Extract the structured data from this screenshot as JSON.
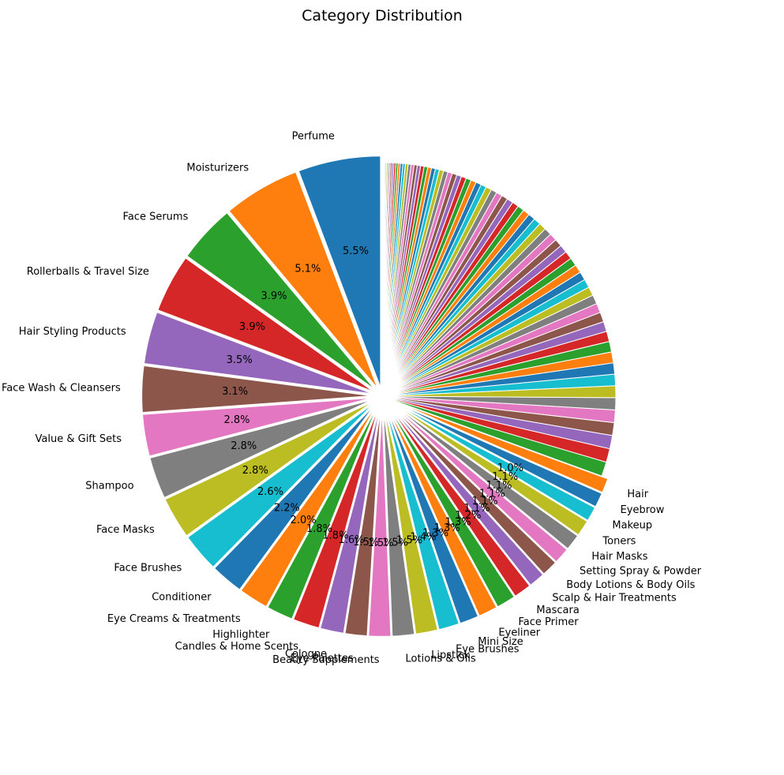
{
  "chart_data": {
    "type": "pie",
    "title": "Category Distribution",
    "start_angle_deg": 90,
    "direction": "counterclockwise",
    "labeled_slices": [
      {
        "label": "Perfume",
        "value": 5.5
      },
      {
        "label": "Moisturizers",
        "value": 5.1
      },
      {
        "label": "Face Serums",
        "value": 3.9
      },
      {
        "label": "Rollerballs & Travel Size",
        "value": 3.9
      },
      {
        "label": "Hair Styling Products",
        "value": 3.5
      },
      {
        "label": "Face Wash & Cleansers",
        "value": 3.1
      },
      {
        "label": "Value & Gift Sets",
        "value": 2.8
      },
      {
        "label": "Shampoo",
        "value": 2.8
      },
      {
        "label": "Face Masks",
        "value": 2.8
      },
      {
        "label": "Face Brushes",
        "value": 2.6
      },
      {
        "label": "Conditioner",
        "value": 2.2
      },
      {
        "label": "Eye Creams & Treatments",
        "value": 2.0
      },
      {
        "label": "Highlighter",
        "value": 1.8
      },
      {
        "label": "Candles & Home Scents",
        "value": 1.8
      },
      {
        "label": "Cologne",
        "value": 1.6
      },
      {
        "label": "Eye Palettes",
        "value": 1.5
      },
      {
        "label": "Beauty Supplements",
        "value": 1.5
      },
      {
        "label": "Lotions & Oils",
        "value": 1.5
      },
      {
        "label": "Lipstick",
        "value": 1.5
      },
      {
        "label": "Eye Brushes",
        "value": 1.4
      },
      {
        "label": "Mini Size",
        "value": 1.3
      },
      {
        "label": "Eyeliner",
        "value": 1.3
      },
      {
        "label": "Face Primer",
        "value": 1.3
      },
      {
        "label": "Mascara",
        "value": 1.2
      },
      {
        "label": "Scalp & Hair Treatments",
        "value": 1.1
      },
      {
        "label": "Body Lotions & Body Oils",
        "value": 1.1
      },
      {
        "label": "Setting Spray & Powder",
        "value": 1.1
      },
      {
        "label": "Hair Masks",
        "value": 1.1
      },
      {
        "label": "Toners",
        "value": 1.1
      },
      {
        "label": "Makeup",
        "value": 1.0
      },
      {
        "label": "Eyebrow",
        "value": 1.0
      },
      {
        "label": "Hair",
        "value": 1.0
      }
    ],
    "pct_labels": [
      "5.5%",
      "5.1%",
      "3.9%",
      "3.9%",
      "3.5%",
      "3.1%",
      "2.8%",
      "2.8%",
      "2.8%",
      "2.6%",
      "2.2%",
      "2.0%",
      "1.8%",
      "1.8%",
      "1.6%",
      "1.5%",
      "1.5%",
      "1.5%",
      "1.5%",
      "1.4%",
      "1.3%",
      "1.3%",
      "1.3%",
      "1.2%",
      "1.1%",
      "1.1%",
      "1.1%",
      "1.1%",
      "1.1%",
      "1.0%",
      "",
      ""
    ],
    "unlabeled_slice_values": [
      0.95,
      0.9,
      0.88,
      0.85,
      0.83,
      0.8,
      0.78,
      0.76,
      0.74,
      0.72,
      0.7,
      0.68,
      0.66,
      0.64,
      0.62,
      0.6,
      0.58,
      0.57,
      0.56,
      0.55,
      0.54,
      0.53,
      0.52,
      0.51,
      0.5,
      0.49,
      0.48,
      0.47,
      0.46,
      0.45,
      0.44,
      0.43,
      0.42,
      0.41,
      0.4,
      0.39,
      0.38,
      0.37,
      0.36,
      0.35,
      0.34,
      0.33,
      0.32,
      0.31,
      0.3,
      0.29,
      0.28,
      0.27,
      0.26,
      0.25,
      0.24,
      0.23,
      0.22,
      0.21,
      0.2,
      0.19,
      0.18,
      0.17,
      0.16,
      0.15,
      0.14,
      0.13,
      0.12,
      0.11,
      0.1,
      0.09,
      0.08,
      0.07,
      0.06,
      0.05,
      0.04,
      0.03,
      0.02
    ],
    "palette": [
      "#1f77b4",
      "#ff7f0e",
      "#2ca02c",
      "#d62728",
      "#9467bd",
      "#8c564b",
      "#e377c2",
      "#7f7f7f",
      "#bcbd22",
      "#17becf"
    ],
    "edge_color": "#ffffff"
  }
}
